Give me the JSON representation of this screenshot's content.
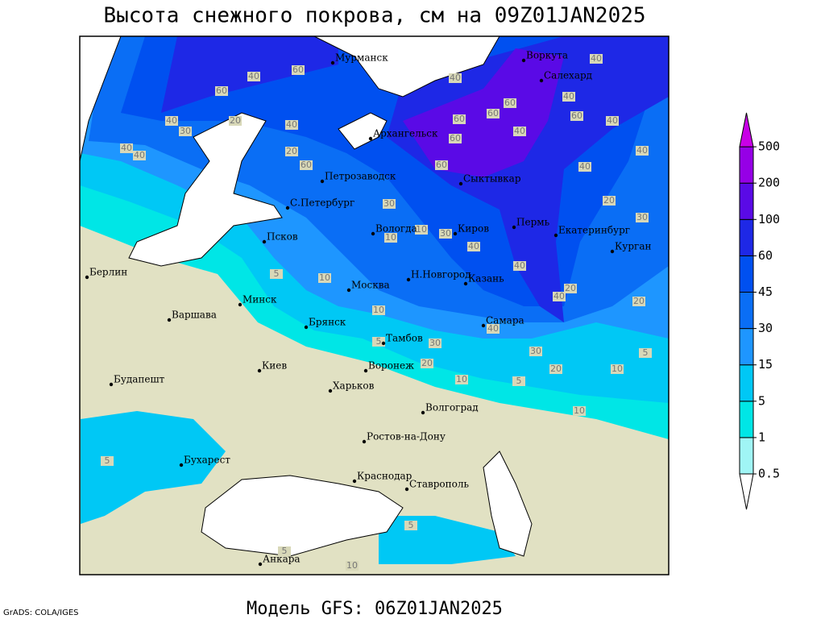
{
  "title": "Высота снежного покрова, см на 09Z01JAN2025",
  "model": "Модель GFS: 06Z01JAN2025",
  "credit": "GrADS: COLA/IGES",
  "cities": [
    "Мурманск",
    "Воркута",
    "Салехард",
    "Архангельск",
    "Сыктывкар",
    "Петрозаводск",
    "С.Петербург",
    "Вологда",
    "Киров",
    "Пермь",
    "Екатеринбург",
    "Курган",
    "Псков",
    "Н.Новгород",
    "Москва",
    "Казань",
    "Берлин",
    "Варшава",
    "Минск",
    "Брянск",
    "Тамбов",
    "Самара",
    "Воронеж",
    "Киев",
    "Харьков",
    "Будапешт",
    "Волгоград",
    "Ростов-на-Дону",
    "Бухарест",
    "Краснодар",
    "Ставрополь",
    "Анкара"
  ],
  "colorbar": {
    "levels": [
      0.5,
      1,
      5,
      15,
      30,
      45,
      60,
      100,
      200,
      500
    ],
    "colors": [
      "#ffffff",
      "#a0f5f5",
      "#00e6e6",
      "#00c8f5",
      "#1e96ff",
      "#0a6ef5",
      "#0050f0",
      "#1e28e6",
      "#5a0ae6",
      "#9600e6",
      "#c800e6"
    ]
  },
  "contour_labels": [
    40,
    60,
    60,
    40,
    30,
    20,
    40,
    40,
    40,
    20,
    60,
    60,
    60,
    60,
    40,
    60,
    60,
    40,
    60,
    40,
    40,
    40,
    40,
    20,
    30,
    30,
    10,
    10,
    30,
    40,
    40,
    40,
    20,
    20,
    5,
    10,
    10,
    5,
    30,
    40,
    20,
    10,
    5,
    20,
    30,
    10,
    5,
    10,
    5,
    5,
    10,
    5,
    40
  ]
}
